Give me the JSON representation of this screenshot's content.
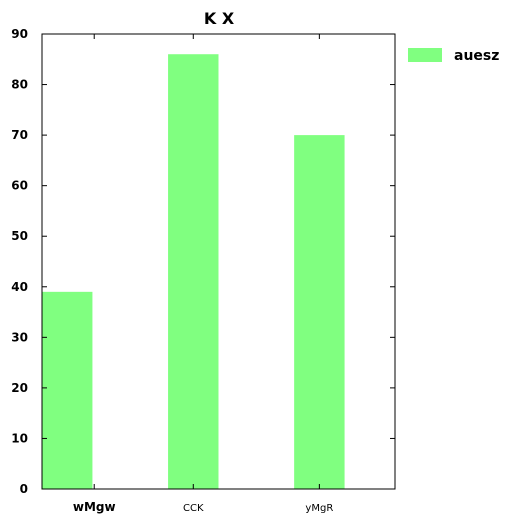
{
  "chart_data": {
    "type": "bar",
    "title": "K X",
    "xlabel": "",
    "ylabel": "",
    "categories": [
      "wMgw",
      "CCK",
      "yMgR"
    ],
    "series": [
      {
        "name": "auesz",
        "values": [
          39,
          86,
          70
        ],
        "color": "#80ff80"
      }
    ],
    "ylim": [
      0,
      90
    ],
    "yticks": [
      0,
      10,
      20,
      30,
      40,
      50,
      60,
      70,
      80,
      90
    ],
    "grid": false,
    "legend": "outside-top-right"
  }
}
